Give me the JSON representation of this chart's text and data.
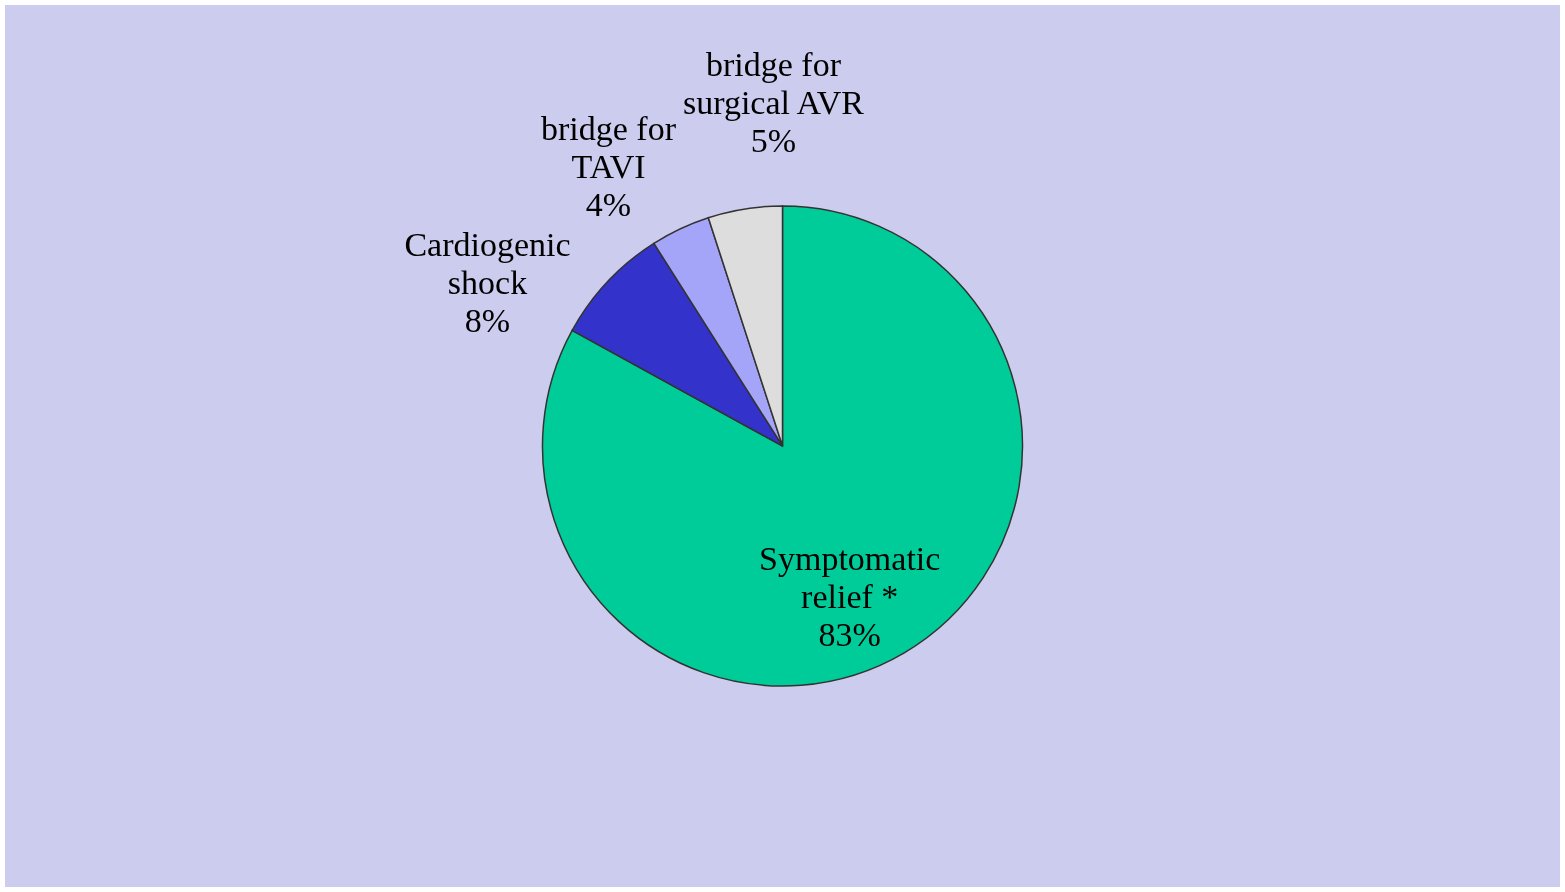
{
  "chart_data": {
    "type": "pie",
    "categories": [
      "Symptomatic relief *",
      "Cardiogenic shock",
      "bridge for TAVI",
      "bridge for surgical AVR"
    ],
    "values": [
      83,
      8,
      4,
      5
    ],
    "colors": [
      "#00cc99",
      "#3333cc",
      "#a4a4f8",
      "#dddddd"
    ],
    "value_labels": [
      "83%",
      "8%",
      "4%",
      "5%"
    ],
    "legend": false
  }
}
